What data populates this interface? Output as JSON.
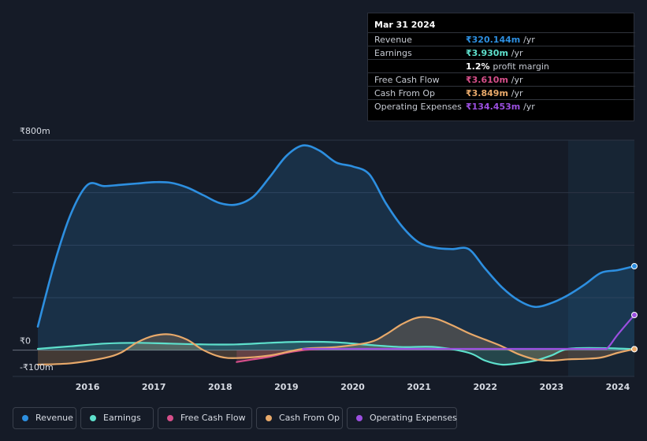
{
  "colors": {
    "background": "#151b27",
    "revenue": "#2d8fe0",
    "earnings": "#5ee0cc",
    "free_cash_flow": "#d64f8a",
    "cash_from_op": "#e8a96a",
    "operating_expenses": "#9b4fe0",
    "forecast_band": "#1a2d40"
  },
  "tooltip": {
    "date": "Mar 31 2024",
    "rows": [
      {
        "label": "Revenue",
        "value": "₹320.144m",
        "unit": "/yr",
        "color": "#2d8fe0"
      },
      {
        "label": "Earnings",
        "value": "₹3.930m",
        "unit": "/yr",
        "color": "#5ee0cc"
      },
      {
        "label": "",
        "value": "1.2%",
        "unit": "profit margin",
        "color": "#ffffff"
      },
      {
        "label": "Free Cash Flow",
        "value": "₹3.610m",
        "unit": "/yr",
        "color": "#d64f8a"
      },
      {
        "label": "Cash From Op",
        "value": "₹3.849m",
        "unit": "/yr",
        "color": "#e8a96a"
      },
      {
        "label": "Operating Expenses",
        "value": "₹134.453m",
        "unit": "/yr",
        "color": "#9b4fe0"
      }
    ]
  },
  "legend": [
    {
      "label": "Revenue",
      "color": "#2d8fe0"
    },
    {
      "label": "Earnings",
      "color": "#5ee0cc"
    },
    {
      "label": "Free Cash Flow",
      "color": "#d64f8a"
    },
    {
      "label": "Cash From Op",
      "color": "#e8a96a"
    },
    {
      "label": "Operating Expenses",
      "color": "#9b4fe0"
    }
  ],
  "chart_data": {
    "type": "line",
    "title": "",
    "xlabel": "",
    "ylabel": "",
    "ylim": [
      -100,
      800
    ],
    "xlim": [
      2015.25,
      2024.25
    ],
    "y_tick_labels": [
      {
        "value": 800,
        "label": "₹800m"
      },
      {
        "value": 0,
        "label": "₹0"
      },
      {
        "value": -100,
        "label": "-₹100m"
      }
    ],
    "x_ticks": [
      2016,
      2017,
      2018,
      2019,
      2020,
      2021,
      2022,
      2023,
      2024
    ],
    "x_tick_labels": [
      "2016",
      "2017",
      "2018",
      "2019",
      "2020",
      "2021",
      "2022",
      "2023",
      "2024"
    ],
    "highlight_start": 2023.25,
    "series": [
      {
        "name": "Revenue",
        "key": "revenue",
        "fill": true,
        "points": [
          [
            2015.25,
            90
          ],
          [
            2015.5,
            330
          ],
          [
            2015.75,
            520
          ],
          [
            2016.0,
            630
          ],
          [
            2016.25,
            625
          ],
          [
            2016.5,
            630
          ],
          [
            2016.75,
            635
          ],
          [
            2017.0,
            640
          ],
          [
            2017.25,
            638
          ],
          [
            2017.5,
            620
          ],
          [
            2017.75,
            590
          ],
          [
            2018.0,
            560
          ],
          [
            2018.25,
            555
          ],
          [
            2018.5,
            585
          ],
          [
            2018.75,
            660
          ],
          [
            2019.0,
            740
          ],
          [
            2019.25,
            780
          ],
          [
            2019.5,
            760
          ],
          [
            2019.75,
            715
          ],
          [
            2020.0,
            700
          ],
          [
            2020.25,
            670
          ],
          [
            2020.5,
            560
          ],
          [
            2020.75,
            470
          ],
          [
            2021.0,
            410
          ],
          [
            2021.25,
            390
          ],
          [
            2021.5,
            385
          ],
          [
            2021.75,
            385
          ],
          [
            2022.0,
            310
          ],
          [
            2022.25,
            240
          ],
          [
            2022.5,
            190
          ],
          [
            2022.75,
            165
          ],
          [
            2023.0,
            180
          ],
          [
            2023.25,
            210
          ],
          [
            2023.5,
            250
          ],
          [
            2023.75,
            295
          ],
          [
            2024.0,
            305
          ],
          [
            2024.25,
            320
          ]
        ]
      },
      {
        "name": "Earnings",
        "key": "earnings",
        "fill": true,
        "points": [
          [
            2015.25,
            5
          ],
          [
            2015.75,
            15
          ],
          [
            2016.25,
            25
          ],
          [
            2016.75,
            28
          ],
          [
            2017.25,
            25
          ],
          [
            2017.75,
            22
          ],
          [
            2018.25,
            22
          ],
          [
            2018.75,
            28
          ],
          [
            2019.25,
            32
          ],
          [
            2019.75,
            30
          ],
          [
            2020.25,
            20
          ],
          [
            2020.75,
            12
          ],
          [
            2021.25,
            12
          ],
          [
            2021.75,
            -10
          ],
          [
            2022.0,
            -40
          ],
          [
            2022.25,
            -55
          ],
          [
            2022.5,
            -50
          ],
          [
            2022.75,
            -40
          ],
          [
            2023.0,
            -20
          ],
          [
            2023.25,
            5
          ],
          [
            2023.75,
            8
          ],
          [
            2024.25,
            4
          ]
        ]
      },
      {
        "name": "Free Cash Flow",
        "key": "free_cash_flow",
        "fill": true,
        "points": [
          [
            2018.25,
            -45
          ],
          [
            2018.5,
            -35
          ],
          [
            2018.75,
            -25
          ],
          [
            2019.0,
            -10
          ],
          [
            2019.25,
            0
          ],
          [
            2019.5,
            5
          ]
        ]
      },
      {
        "name": "Cash From Op",
        "key": "cash_from_op",
        "fill": true,
        "points": [
          [
            2015.25,
            -55
          ],
          [
            2015.75,
            -50
          ],
          [
            2016.25,
            -30
          ],
          [
            2016.5,
            -10
          ],
          [
            2016.75,
            30
          ],
          [
            2017.0,
            55
          ],
          [
            2017.25,
            60
          ],
          [
            2017.5,
            40
          ],
          [
            2017.75,
            0
          ],
          [
            2018.0,
            -25
          ],
          [
            2018.25,
            -30
          ],
          [
            2018.75,
            -20
          ],
          [
            2019.25,
            5
          ],
          [
            2019.75,
            12
          ],
          [
            2020.25,
            30
          ],
          [
            2020.5,
            60
          ],
          [
            2020.75,
            100
          ],
          [
            2021.0,
            125
          ],
          [
            2021.25,
            120
          ],
          [
            2021.5,
            95
          ],
          [
            2021.75,
            65
          ],
          [
            2022.0,
            40
          ],
          [
            2022.25,
            15
          ],
          [
            2022.5,
            -15
          ],
          [
            2022.75,
            -35
          ],
          [
            2023.0,
            -40
          ],
          [
            2023.25,
            -35
          ],
          [
            2023.5,
            -33
          ],
          [
            2023.75,
            -28
          ],
          [
            2024.0,
            -10
          ],
          [
            2024.25,
            4
          ]
        ]
      },
      {
        "name": "Operating Expenses",
        "key": "operating_expenses",
        "fill": false,
        "points": [
          [
            2019.25,
            5
          ],
          [
            2019.75,
            5
          ],
          [
            2020.25,
            5
          ],
          [
            2020.75,
            5
          ],
          [
            2021.25,
            5
          ],
          [
            2021.75,
            5
          ],
          [
            2022.25,
            5
          ],
          [
            2022.75,
            5
          ],
          [
            2023.25,
            5
          ],
          [
            2023.75,
            5
          ],
          [
            2023.85,
            10
          ],
          [
            2024.0,
            60
          ],
          [
            2024.25,
            134
          ]
        ]
      }
    ]
  }
}
